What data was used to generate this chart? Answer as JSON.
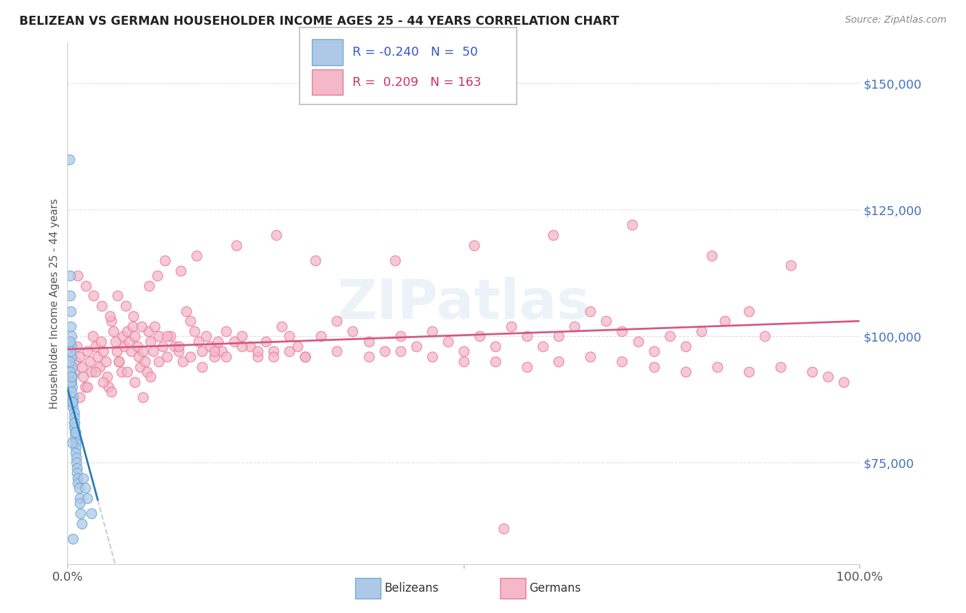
{
  "title": "BELIZEAN VS GERMAN HOUSEHOLDER INCOME AGES 25 - 44 YEARS CORRELATION CHART",
  "source": "Source: ZipAtlas.com",
  "ylabel": "Householder Income Ages 25 - 44 years",
  "xlim": [
    0.0,
    1.0
  ],
  "ylim": [
    55000,
    158000
  ],
  "yticks": [
    75000,
    100000,
    125000,
    150000
  ],
  "ytick_labels": [
    "$75,000",
    "$100,000",
    "$125,000",
    "$150,000"
  ],
  "belizean_color": "#aec9e8",
  "german_color": "#f4b8c8",
  "belizean_edge": "#6aaad4",
  "german_edge": "#e8799a",
  "trend_blue": "#2878b5",
  "trend_pink": "#d45880",
  "trend_dashed": "#cccccc",
  "R_belizean": -0.24,
  "N_belizean": 50,
  "R_german": 0.209,
  "N_german": 163,
  "legend_label_belizean": "Belizeans",
  "legend_label_german": "Germans",
  "watermark": "ZIPatlas",
  "belizean_x": [
    0.002,
    0.003,
    0.003,
    0.004,
    0.004,
    0.005,
    0.005,
    0.005,
    0.006,
    0.006,
    0.006,
    0.007,
    0.007,
    0.007,
    0.008,
    0.008,
    0.008,
    0.008,
    0.009,
    0.009,
    0.01,
    0.01,
    0.01,
    0.011,
    0.011,
    0.012,
    0.012,
    0.013,
    0.013,
    0.014,
    0.015,
    0.015,
    0.016,
    0.018,
    0.02,
    0.022,
    0.025,
    0.03,
    0.002,
    0.003,
    0.004,
    0.005,
    0.006,
    0.008,
    0.01,
    0.003,
    0.004,
    0.005,
    0.006,
    0.007
  ],
  "belizean_y": [
    135000,
    112000,
    108000,
    105000,
    102000,
    100000,
    98000,
    96000,
    94000,
    92000,
    90000,
    88000,
    87000,
    86000,
    85000,
    84000,
    83000,
    82000,
    81000,
    80000,
    79000,
    78000,
    77000,
    76000,
    75000,
    74000,
    73000,
    72000,
    71000,
    70000,
    68000,
    67000,
    65000,
    63000,
    72000,
    70000,
    68000,
    65000,
    95000,
    93000,
    91000,
    89000,
    87000,
    83000,
    81000,
    99000,
    97000,
    92000,
    79000,
    60000
  ],
  "german_x": [
    0.005,
    0.008,
    0.01,
    0.012,
    0.015,
    0.018,
    0.02,
    0.022,
    0.025,
    0.028,
    0.03,
    0.032,
    0.035,
    0.038,
    0.04,
    0.042,
    0.045,
    0.048,
    0.05,
    0.052,
    0.055,
    0.058,
    0.06,
    0.062,
    0.065,
    0.068,
    0.07,
    0.072,
    0.075,
    0.078,
    0.08,
    0.082,
    0.085,
    0.088,
    0.09,
    0.092,
    0.095,
    0.098,
    0.1,
    0.102,
    0.105,
    0.108,
    0.11,
    0.115,
    0.12,
    0.125,
    0.13,
    0.135,
    0.14,
    0.145,
    0.15,
    0.155,
    0.16,
    0.165,
    0.17,
    0.175,
    0.18,
    0.185,
    0.19,
    0.195,
    0.2,
    0.21,
    0.22,
    0.23,
    0.24,
    0.25,
    0.26,
    0.27,
    0.28,
    0.29,
    0.3,
    0.32,
    0.34,
    0.36,
    0.38,
    0.4,
    0.42,
    0.44,
    0.46,
    0.48,
    0.5,
    0.52,
    0.54,
    0.56,
    0.58,
    0.6,
    0.62,
    0.64,
    0.66,
    0.68,
    0.7,
    0.72,
    0.74,
    0.76,
    0.78,
    0.8,
    0.83,
    0.86,
    0.88,
    0.015,
    0.025,
    0.035,
    0.045,
    0.055,
    0.065,
    0.075,
    0.085,
    0.095,
    0.105,
    0.115,
    0.125,
    0.14,
    0.155,
    0.17,
    0.185,
    0.2,
    0.22,
    0.24,
    0.26,
    0.28,
    0.3,
    0.34,
    0.38,
    0.42,
    0.46,
    0.5,
    0.54,
    0.58,
    0.62,
    0.66,
    0.7,
    0.74,
    0.78,
    0.82,
    0.86,
    0.9,
    0.94,
    0.96,
    0.98,
    0.013,
    0.023,
    0.033,
    0.043,
    0.053,
    0.063,
    0.073,
    0.083,
    0.093,
    0.103,
    0.113,
    0.123,
    0.143,
    0.163,
    0.213,
    0.263,
    0.313,
    0.413,
    0.513,
    0.613,
    0.713,
    0.813,
    0.913,
    0.55
  ],
  "german_y": [
    91000,
    93000,
    95000,
    98000,
    96000,
    94000,
    92000,
    90000,
    97000,
    95000,
    93000,
    100000,
    98000,
    96000,
    94000,
    99000,
    97000,
    95000,
    92000,
    90000,
    103000,
    101000,
    99000,
    97000,
    95000,
    93000,
    100000,
    98000,
    101000,
    99000,
    97000,
    102000,
    100000,
    98000,
    96000,
    94000,
    97000,
    95000,
    93000,
    101000,
    99000,
    97000,
    102000,
    100000,
    98000,
    96000,
    100000,
    98000,
    97000,
    95000,
    105000,
    103000,
    101000,
    99000,
    97000,
    100000,
    98000,
    96000,
    99000,
    97000,
    101000,
    99000,
    100000,
    98000,
    96000,
    99000,
    97000,
    102000,
    100000,
    98000,
    96000,
    100000,
    103000,
    101000,
    99000,
    97000,
    100000,
    98000,
    101000,
    99000,
    97000,
    100000,
    98000,
    102000,
    100000,
    98000,
    100000,
    102000,
    105000,
    103000,
    101000,
    99000,
    97000,
    100000,
    98000,
    101000,
    103000,
    105000,
    100000,
    88000,
    90000,
    93000,
    91000,
    89000,
    95000,
    93000,
    91000,
    88000,
    92000,
    95000,
    100000,
    98000,
    96000,
    94000,
    97000,
    96000,
    98000,
    97000,
    96000,
    97000,
    96000,
    97000,
    96000,
    97000,
    96000,
    95000,
    95000,
    94000,
    95000,
    96000,
    95000,
    94000,
    93000,
    94000,
    93000,
    94000,
    93000,
    92000,
    91000,
    112000,
    110000,
    108000,
    106000,
    104000,
    108000,
    106000,
    104000,
    102000,
    110000,
    112000,
    115000,
    113000,
    116000,
    118000,
    120000,
    115000,
    115000,
    118000,
    120000,
    122000,
    116000,
    114000,
    62000
  ]
}
